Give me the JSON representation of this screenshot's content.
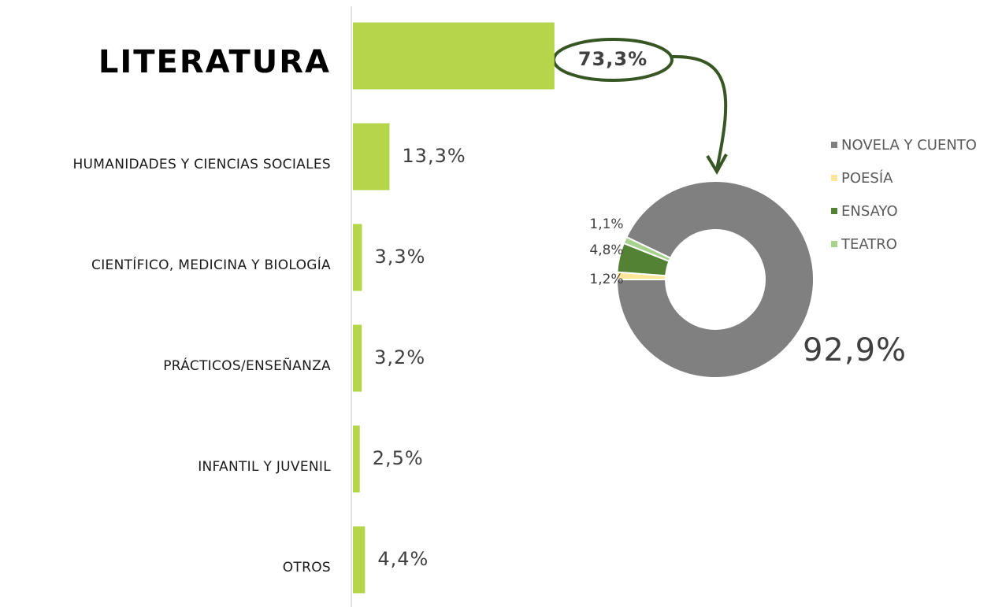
{
  "chart_data": [
    {
      "type": "hbar",
      "categories": [
        "LITERATURA",
        "HUMANIDADES Y CIENCIAS SOCIALES",
        "CIENTÍFICO, MEDICINA Y BIOLOGÍA",
        "PRÁCTICOS/ENSEÑANZA",
        "INFANTIL Y JUVENIL",
        "OTROS"
      ],
      "values": [
        73.3,
        13.3,
        3.3,
        3.2,
        2.5,
        4.4
      ],
      "value_labels": [
        "73,3%",
        "13,3%",
        "3,3%",
        "3,2%",
        "2,5%",
        "4,4%"
      ],
      "color": "#b5d64b"
    },
    {
      "type": "donut",
      "categories": [
        "NOVELA Y CUENTO",
        "POESÍA",
        "ENSAYO",
        "TEATRO"
      ],
      "values": [
        92.9,
        1.2,
        4.8,
        1.1
      ],
      "value_labels": [
        "92,9%",
        "1,2%",
        "4,8%",
        "1,1%"
      ],
      "colors": [
        "#808080",
        "#ffe699",
        "#548235",
        "#a9d18e"
      ],
      "legend": "right"
    }
  ]
}
